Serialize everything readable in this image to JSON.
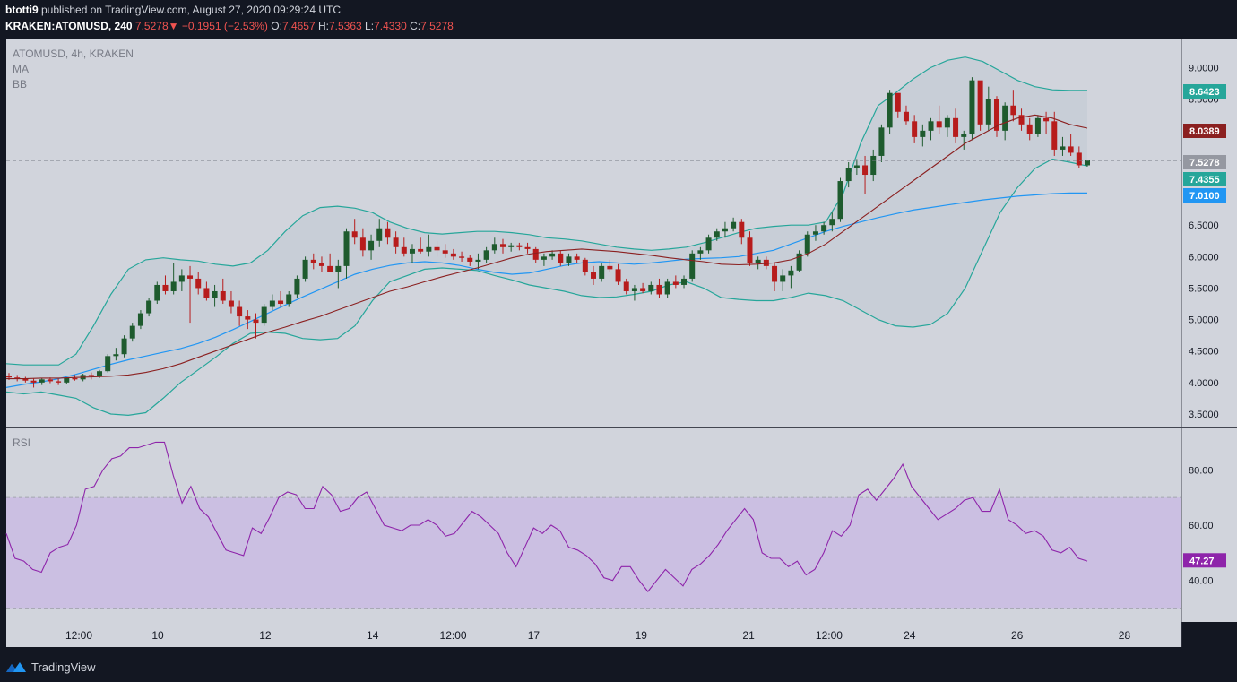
{
  "header": {
    "author": "btotti9",
    "published_text": "published on TradingView.com, August 27, 2020 09:29:24 UTC",
    "symbol": "KRAKEN:ATOMUSD, 240",
    "last": "7.5278",
    "arrow": "▼",
    "change": "−0.1951 (−2.53%)",
    "o_label": "O:",
    "o_value": "7.4657",
    "h_label": "H:",
    "h_value": "7.5363",
    "l_label": "L:",
    "l_value": "7.4330",
    "c_label": "C:",
    "c_value": "7.5278"
  },
  "footer": {
    "brand": "TradingView"
  },
  "colors": {
    "background": "#131722",
    "plot_bg": "#d1d4dc",
    "up": "#1e5b2e",
    "down": "#b71c1c",
    "bb": "#26a69a",
    "bb_fill": "#c4ccd5",
    "ma_mid": "#8b2020",
    "ma_blue": "#2196f3",
    "rsi": "#8e24aa",
    "rsi_band": "#cbbfe2"
  },
  "chart_data": [
    {
      "type": "candlestick",
      "title": "ATOMUSD, 4h, KRAKEN",
      "indicators": [
        "MA",
        "BB"
      ],
      "ylim": [
        3.3,
        9.45
      ],
      "y_ticks": [
        "9.0000",
        "8.5000",
        "8.0000",
        "7.5000",
        "7.0000",
        "6.5000",
        "6.0000",
        "5.5000",
        "5.0000",
        "4.5000",
        "4.0000",
        "3.5000"
      ],
      "x_ticks": [
        "12:00",
        "10",
        "12",
        "14",
        "12:00",
        "17",
        "19",
        "21",
        "12:00",
        "24",
        "26",
        "28"
      ],
      "last_price": 7.5278,
      "labels": [
        {
          "value": "8.6423",
          "color": "#26a69a"
        },
        {
          "value": "8.0389",
          "color": "#8b2020"
        },
        {
          "value": "7.5278",
          "color": "#9598a1"
        },
        {
          "value": "7.4355",
          "color": "#26a69a"
        },
        {
          "value": "7.0100",
          "color": "#2196f3"
        }
      ],
      "candles": [
        [
          4.1,
          4.15,
          4.04,
          4.08
        ],
        [
          4.08,
          4.12,
          4.02,
          4.06
        ],
        [
          4.06,
          4.09,
          4.0,
          4.03
        ],
        [
          4.03,
          4.06,
          3.92,
          4.0
        ],
        [
          4.0,
          4.07,
          3.96,
          4.05
        ],
        [
          4.05,
          4.08,
          3.99,
          4.02
        ],
        [
          4.02,
          4.06,
          3.96,
          4.0
        ],
        [
          4.0,
          4.08,
          3.98,
          4.07
        ],
        [
          4.07,
          4.12,
          4.03,
          4.05
        ],
        [
          4.05,
          4.14,
          4.02,
          4.12
        ],
        [
          4.12,
          4.16,
          4.05,
          4.1
        ],
        [
          4.1,
          4.2,
          4.07,
          4.18
        ],
        [
          4.18,
          4.45,
          4.16,
          4.42
        ],
        [
          4.42,
          4.55,
          4.35,
          4.45
        ],
        [
          4.45,
          4.75,
          4.4,
          4.7
        ],
        [
          4.7,
          4.95,
          4.65,
          4.9
        ],
        [
          4.9,
          5.15,
          4.85,
          5.1
        ],
        [
          5.1,
          5.35,
          5.05,
          5.3
        ],
        [
          5.3,
          5.6,
          5.25,
          5.55
        ],
        [
          5.55,
          5.7,
          5.4,
          5.45
        ],
        [
          5.45,
          5.9,
          5.4,
          5.6
        ],
        [
          5.6,
          5.8,
          5.45,
          5.7
        ],
        [
          5.7,
          5.85,
          4.95,
          5.65
        ],
        [
          5.65,
          5.75,
          5.4,
          5.5
        ],
        [
          5.5,
          5.6,
          5.3,
          5.35
        ],
        [
          5.35,
          5.55,
          5.2,
          5.45
        ],
        [
          5.45,
          5.65,
          5.25,
          5.3
        ],
        [
          5.3,
          5.45,
          5.1,
          5.2
        ],
        [
          5.2,
          5.3,
          4.9,
          5.05
        ],
        [
          5.05,
          5.15,
          4.85,
          5.0
        ],
        [
          5.0,
          5.1,
          4.7,
          4.95
        ],
        [
          4.95,
          5.25,
          4.9,
          5.2
        ],
        [
          5.2,
          5.4,
          5.15,
          5.3
        ],
        [
          5.3,
          5.45,
          5.2,
          5.25
        ],
        [
          5.25,
          5.45,
          5.2,
          5.4
        ],
        [
          5.4,
          5.7,
          5.35,
          5.65
        ],
        [
          5.65,
          6.0,
          5.6,
          5.95
        ],
        [
          5.95,
          6.05,
          5.8,
          5.9
        ],
        [
          5.9,
          6.0,
          5.75,
          5.85
        ],
        [
          5.85,
          6.05,
          5.8,
          5.75
        ],
        [
          5.75,
          5.95,
          5.5,
          5.85
        ],
        [
          5.85,
          6.45,
          5.65,
          6.4
        ],
        [
          6.4,
          6.6,
          6.2,
          6.3
        ],
        [
          6.3,
          6.45,
          6.0,
          6.1
        ],
        [
          6.1,
          6.35,
          5.95,
          6.25
        ],
        [
          6.25,
          6.6,
          6.15,
          6.45
        ],
        [
          6.45,
          6.55,
          6.2,
          6.3
        ],
        [
          6.3,
          6.4,
          6.05,
          6.15
        ],
        [
          6.15,
          6.3,
          6.0,
          6.05
        ],
        [
          6.05,
          6.2,
          5.9,
          6.12
        ],
        [
          6.12,
          6.3,
          6.05,
          6.08
        ],
        [
          6.08,
          6.35,
          6.0,
          6.15
        ],
        [
          6.15,
          6.25,
          6.0,
          6.1
        ],
        [
          6.1,
          6.2,
          5.98,
          6.05
        ],
        [
          6.05,
          6.12,
          5.95,
          6.0
        ],
        [
          6.0,
          6.08,
          5.92,
          5.98
        ],
        [
          5.98,
          6.03,
          5.85,
          5.92
        ],
        [
          5.92,
          6.05,
          5.8,
          5.95
        ],
        [
          5.95,
          6.15,
          5.9,
          6.1
        ],
        [
          6.1,
          6.3,
          6.05,
          6.2
        ],
        [
          6.2,
          6.28,
          6.05,
          6.15
        ],
        [
          6.15,
          6.22,
          6.08,
          6.18
        ],
        [
          6.18,
          6.22,
          6.1,
          6.15
        ],
        [
          6.15,
          6.22,
          6.05,
          6.12
        ],
        [
          6.12,
          6.15,
          5.9,
          5.95
        ],
        [
          5.95,
          6.05,
          5.85,
          6.0
        ],
        [
          6.0,
          6.1,
          5.95,
          6.05
        ],
        [
          6.05,
          6.1,
          5.85,
          5.9
        ],
        [
          5.9,
          6.05,
          5.85,
          6.0
        ],
        [
          6.0,
          6.05,
          5.9,
          5.95
        ],
        [
          5.95,
          5.98,
          5.7,
          5.75
        ],
        [
          5.75,
          5.85,
          5.55,
          5.65
        ],
        [
          5.65,
          5.9,
          5.6,
          5.85
        ],
        [
          5.85,
          5.95,
          5.75,
          5.8
        ],
        [
          5.8,
          5.88,
          5.55,
          5.6
        ],
        [
          5.6,
          5.65,
          5.4,
          5.45
        ],
        [
          5.45,
          5.55,
          5.3,
          5.5
        ],
        [
          5.5,
          5.58,
          5.42,
          5.45
        ],
        [
          5.45,
          5.6,
          5.4,
          5.55
        ],
        [
          5.55,
          5.65,
          5.35,
          5.4
        ],
        [
          5.4,
          5.65,
          5.35,
          5.6
        ],
        [
          5.6,
          5.7,
          5.5,
          5.55
        ],
        [
          5.55,
          5.7,
          5.5,
          5.65
        ],
        [
          5.65,
          6.1,
          5.6,
          6.05
        ],
        [
          6.05,
          6.15,
          5.95,
          6.1
        ],
        [
          6.1,
          6.35,
          6.05,
          6.3
        ],
        [
          6.3,
          6.45,
          6.25,
          6.4
        ],
        [
          6.4,
          6.55,
          6.3,
          6.45
        ],
        [
          6.45,
          6.62,
          6.4,
          6.55
        ],
        [
          6.55,
          6.6,
          6.2,
          6.3
        ],
        [
          6.3,
          6.4,
          5.85,
          5.9
        ],
        [
          5.9,
          6.0,
          5.8,
          5.95
        ],
        [
          5.95,
          6.0,
          5.8,
          5.85
        ],
        [
          5.85,
          5.9,
          5.45,
          5.6
        ],
        [
          5.6,
          5.8,
          5.45,
          5.7
        ],
        [
          5.7,
          5.85,
          5.5,
          5.78
        ],
        [
          5.78,
          6.1,
          5.75,
          6.05
        ],
        [
          6.05,
          6.4,
          6.0,
          6.35
        ],
        [
          6.35,
          6.5,
          6.25,
          6.4
        ],
        [
          6.4,
          6.55,
          6.35,
          6.5
        ],
        [
          6.5,
          6.7,
          6.4,
          6.6
        ],
        [
          6.6,
          7.25,
          6.55,
          7.2
        ],
        [
          7.2,
          7.5,
          7.1,
          7.4
        ],
        [
          7.4,
          7.55,
          7.3,
          7.45
        ],
        [
          7.45,
          7.6,
          7.0,
          7.3
        ],
        [
          7.3,
          7.7,
          7.2,
          7.6
        ],
        [
          7.6,
          8.1,
          7.5,
          8.05
        ],
        [
          8.05,
          8.65,
          7.95,
          8.6
        ],
        [
          8.6,
          8.55,
          8.2,
          8.3
        ],
        [
          8.3,
          8.4,
          8.1,
          8.15
        ],
        [
          8.15,
          8.25,
          7.8,
          7.9
        ],
        [
          7.9,
          8.1,
          7.75,
          8.0
        ],
        [
          8.0,
          8.2,
          7.85,
          8.15
        ],
        [
          8.15,
          8.4,
          7.95,
          8.05
        ],
        [
          8.05,
          8.25,
          7.9,
          8.2
        ],
        [
          8.2,
          8.35,
          7.8,
          7.9
        ],
        [
          7.9,
          8.0,
          7.7,
          7.95
        ],
        [
          7.95,
          8.85,
          7.85,
          8.8
        ],
        [
          8.8,
          8.75,
          8.0,
          8.1
        ],
        [
          8.1,
          8.7,
          8.0,
          8.5
        ],
        [
          8.5,
          8.55,
          7.9,
          8.0
        ],
        [
          8.0,
          8.45,
          7.85,
          8.4
        ],
        [
          8.4,
          8.65,
          8.15,
          8.25
        ],
        [
          8.25,
          8.35,
          8.0,
          8.1
        ],
        [
          8.1,
          8.2,
          7.85,
          7.95
        ],
        [
          7.95,
          8.25,
          7.9,
          8.2
        ],
        [
          8.2,
          8.3,
          7.95,
          8.15
        ],
        [
          8.15,
          8.3,
          7.6,
          7.7
        ],
        [
          7.7,
          7.9,
          7.6,
          7.75
        ],
        [
          7.75,
          7.95,
          7.6,
          7.65
        ],
        [
          7.65,
          7.75,
          7.4,
          7.45
        ],
        [
          7.45,
          7.54,
          7.43,
          7.53
        ]
      ],
      "ma_mid": [
        4.06,
        4.06,
        4.07,
        4.07,
        4.08,
        4.09,
        4.1,
        4.12,
        4.16,
        4.22,
        4.3,
        4.4,
        4.5,
        4.6,
        4.7,
        4.8,
        4.88,
        4.97,
        5.05,
        5.15,
        5.25,
        5.35,
        5.45,
        5.52,
        5.6,
        5.68,
        5.75,
        5.82,
        5.9,
        5.98,
        6.04,
        6.08,
        6.1,
        6.12,
        6.1,
        6.08,
        6.05,
        6.02,
        5.98,
        5.95,
        5.92,
        5.88,
        5.87,
        5.88,
        5.9,
        5.95,
        6.05,
        6.2,
        6.4,
        6.6,
        6.8,
        7.0,
        7.2,
        7.4,
        7.6,
        7.8,
        7.95,
        8.1,
        8.2,
        8.25,
        8.2,
        8.1,
        8.04
      ],
      "ma_blue": [
        3.92,
        3.97,
        4.01,
        4.06,
        4.13,
        4.21,
        4.29,
        4.36,
        4.42,
        4.48,
        4.54,
        4.62,
        4.72,
        4.84,
        4.97,
        5.1,
        5.23,
        5.36,
        5.48,
        5.6,
        5.72,
        5.8,
        5.86,
        5.9,
        5.92,
        5.9,
        5.86,
        5.8,
        5.75,
        5.72,
        5.74,
        5.8,
        5.86,
        5.9,
        5.92,
        5.9,
        5.88,
        5.9,
        5.93,
        5.96,
        5.97,
        5.98,
        6.0,
        6.05,
        6.1,
        6.2,
        6.3,
        6.4,
        6.48,
        6.55,
        6.62,
        6.68,
        6.74,
        6.78,
        6.82,
        6.86,
        6.9,
        6.93,
        6.96,
        6.98,
        7.0,
        7.01,
        7.01
      ],
      "bb_upper": [
        4.3,
        4.28,
        4.28,
        4.28,
        4.45,
        4.9,
        5.4,
        5.8,
        5.95,
        5.98,
        5.95,
        5.93,
        5.88,
        5.85,
        5.9,
        6.1,
        6.4,
        6.65,
        6.78,
        6.8,
        6.77,
        6.7,
        6.55,
        6.45,
        6.38,
        6.36,
        6.38,
        6.4,
        6.4,
        6.38,
        6.35,
        6.3,
        6.28,
        6.25,
        6.2,
        6.15,
        6.12,
        6.1,
        6.12,
        6.15,
        6.22,
        6.3,
        6.38,
        6.45,
        6.48,
        6.5,
        6.5,
        6.55,
        7.0,
        7.8,
        8.4,
        8.6,
        8.82,
        9.0,
        9.12,
        9.17,
        9.1,
        8.95,
        8.8,
        8.7,
        8.65,
        8.64,
        8.64
      ],
      "bb_lower": [
        3.85,
        3.82,
        3.85,
        3.8,
        3.75,
        3.6,
        3.5,
        3.48,
        3.52,
        3.75,
        4.0,
        4.2,
        4.4,
        4.62,
        4.78,
        4.8,
        4.78,
        4.7,
        4.68,
        4.7,
        4.9,
        5.3,
        5.6,
        5.7,
        5.8,
        5.82,
        5.8,
        5.78,
        5.7,
        5.63,
        5.55,
        5.5,
        5.45,
        5.38,
        5.35,
        5.36,
        5.4,
        5.45,
        5.55,
        5.6,
        5.5,
        5.35,
        5.32,
        5.3,
        5.3,
        5.35,
        5.42,
        5.38,
        5.3,
        5.15,
        5.0,
        4.9,
        4.88,
        4.92,
        5.1,
        5.5,
        6.1,
        6.7,
        7.1,
        7.4,
        7.55,
        7.5,
        7.44
      ]
    },
    {
      "type": "line",
      "title": "RSI",
      "ylim": [
        25,
        95
      ],
      "y_ticks": [
        "80.00",
        "60.00",
        "40.00"
      ],
      "band": [
        30,
        70
      ],
      "last_label": "47.27",
      "values": [
        57,
        48,
        47,
        44,
        43,
        50,
        52,
        53,
        60,
        73,
        74,
        80,
        84,
        85,
        88,
        88,
        89,
        90,
        90,
        78,
        68,
        74,
        66,
        63,
        57,
        51,
        50,
        49,
        59,
        57,
        63,
        70,
        72,
        71,
        66,
        66,
        74,
        71,
        65,
        66,
        70,
        72,
        66,
        60,
        59,
        58,
        60,
        60,
        62,
        60,
        56,
        57,
        61,
        65,
        63,
        60,
        57,
        50,
        45,
        52,
        59,
        57,
        60,
        58,
        52,
        51,
        49,
        46,
        41,
        40,
        45,
        45,
        40,
        36,
        40,
        44,
        41,
        38,
        44,
        46,
        49,
        53,
        58,
        62,
        66,
        62,
        50,
        48,
        48,
        45,
        47,
        42,
        44,
        50,
        58,
        56,
        60,
        71,
        73,
        69,
        73,
        77,
        82,
        74,
        70,
        66,
        62,
        64,
        66,
        69,
        70,
        65,
        65,
        73,
        62,
        60,
        57,
        58,
        56,
        51,
        50,
        52,
        48,
        47
      ],
      "rsi_last": 47.27
    }
  ]
}
